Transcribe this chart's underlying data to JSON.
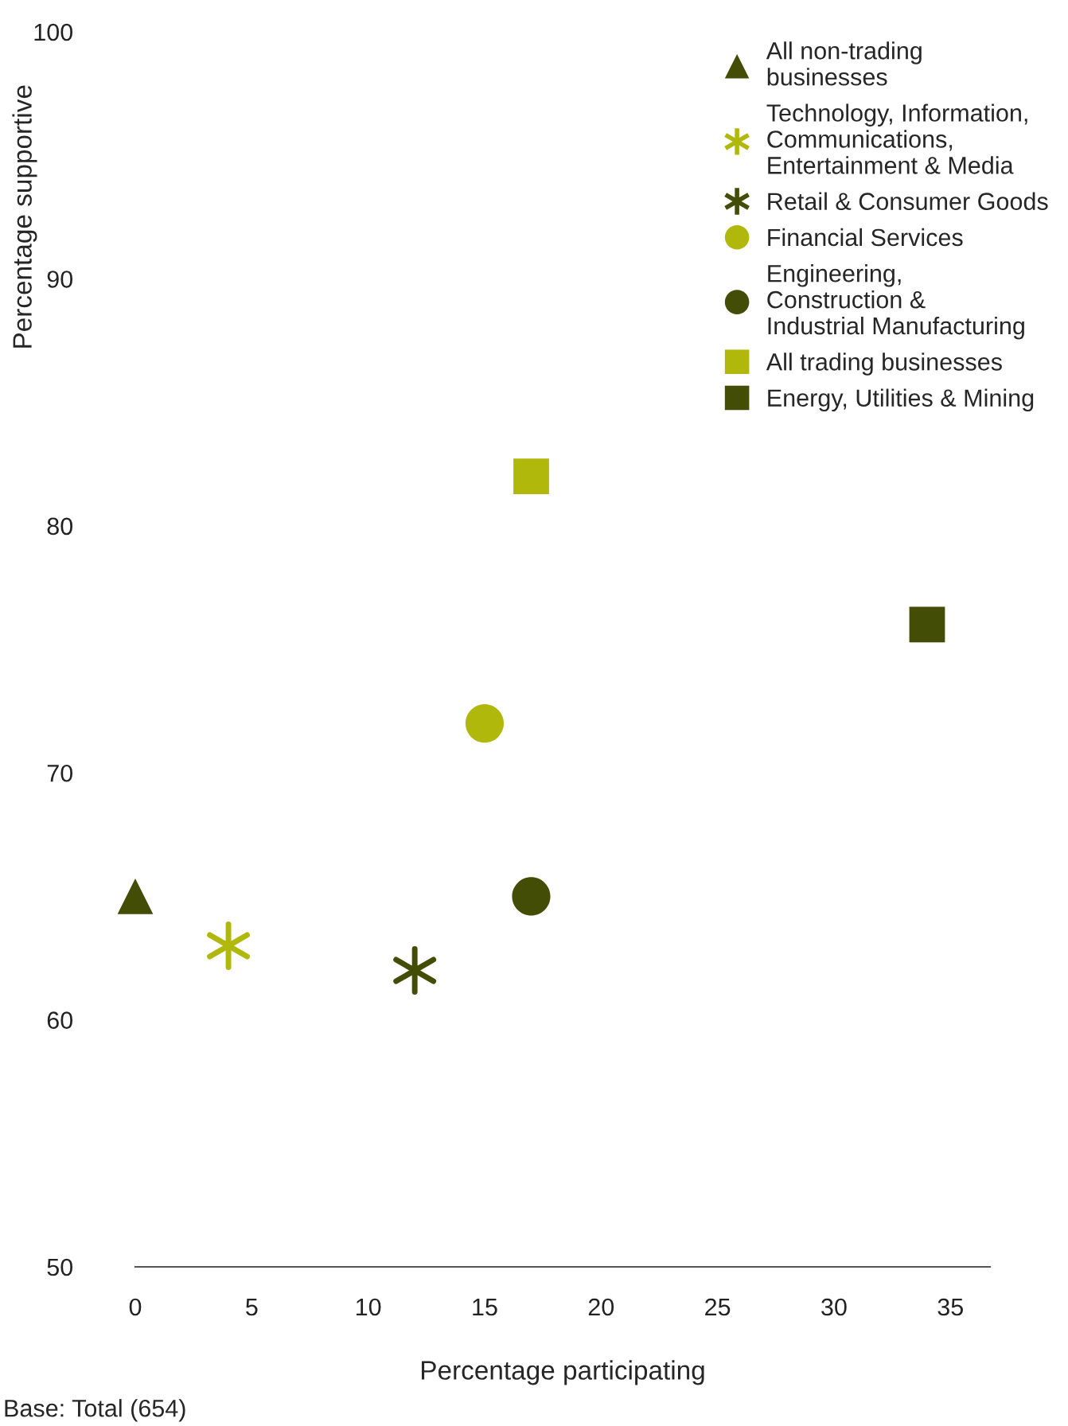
{
  "chart_data": {
    "type": "scatter",
    "xlabel": "Percentage participating",
    "ylabel": "Percentage supportive",
    "xlim": [
      0,
      36.7
    ],
    "ylim": [
      50,
      100
    ],
    "xticks": [
      0,
      5,
      10,
      15,
      20,
      25,
      30,
      35
    ],
    "yticks": [
      50,
      60,
      70,
      80,
      90,
      100
    ],
    "grid": false,
    "legend": "top right",
    "annotations": [
      "Base: Total (654)"
    ],
    "series": [
      {
        "name": "All non-trading\nbusinesses",
        "color": "#434d05",
        "marker": "triangle",
        "x": [
          0
        ],
        "values": [
          65
        ]
      },
      {
        "name": "Technology, Information,\nCommunications,\nEntertainment & Media",
        "color": "#b1b80c",
        "marker": "cross",
        "x": [
          4
        ],
        "values": [
          63
        ]
      },
      {
        "name": "Retail & Consumer Goods",
        "color": "#434d05",
        "marker": "cross",
        "x": [
          12
        ],
        "values": [
          62
        ]
      },
      {
        "name": "Financial Services",
        "color": "#b1b80c",
        "marker": "circle",
        "x": [
          15
        ],
        "values": [
          72
        ]
      },
      {
        "name": "Engineering,\nConstruction &\nIndustrial Manufacturing",
        "color": "#434d05",
        "marker": "circle",
        "x": [
          17
        ],
        "values": [
          65
        ]
      },
      {
        "name": "All trading businesses",
        "color": "#b1b80c",
        "marker": "square",
        "x": [
          17
        ],
        "values": [
          82
        ]
      },
      {
        "name": "Energy, Utilities & Mining",
        "color": "#434d05",
        "marker": "square",
        "x": [
          34
        ],
        "values": [
          76
        ]
      }
    ]
  }
}
